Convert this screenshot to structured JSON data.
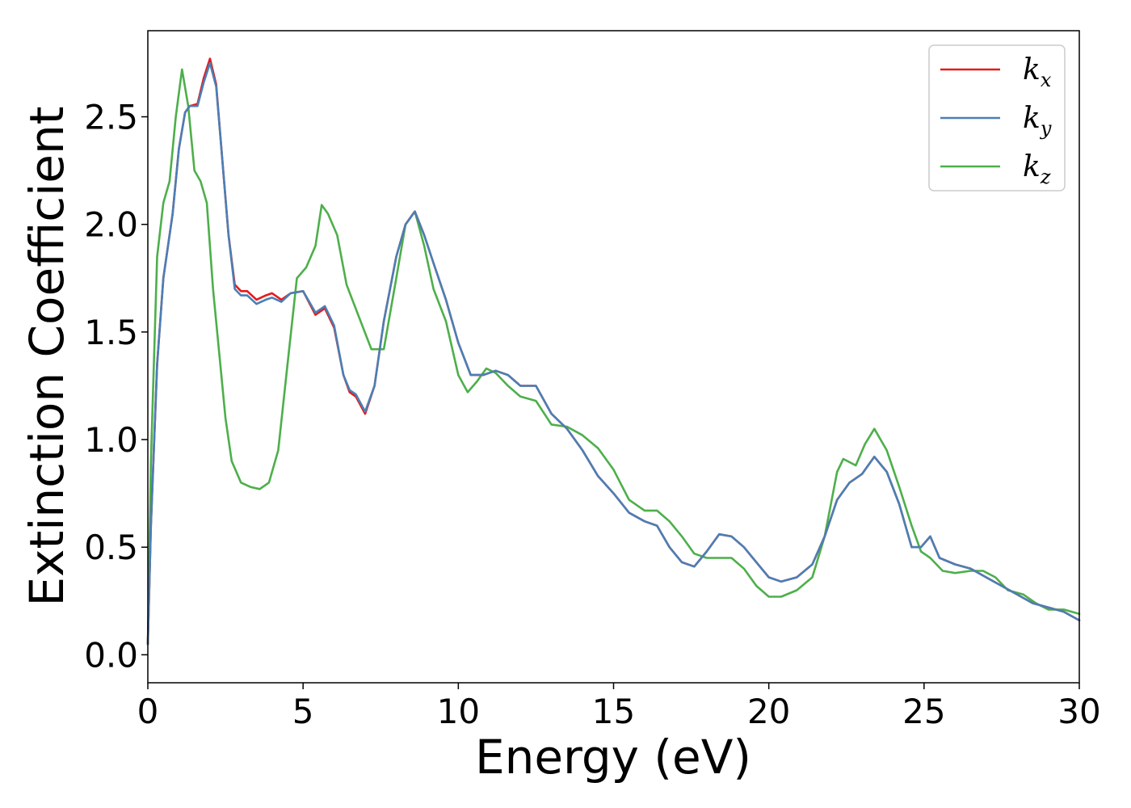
{
  "chart_data": {
    "type": "line",
    "xlabel": "Energy (eV)",
    "ylabel": "Extinction Coefficient",
    "xlim": [
      0,
      30
    ],
    "ylim": [
      -0.13,
      2.9
    ],
    "xticks": [
      "0",
      "5",
      "10",
      "15",
      "20",
      "25",
      "30"
    ],
    "yticks": [
      "0.0",
      "0.5",
      "1.0",
      "1.5",
      "2.0",
      "2.5"
    ],
    "grid": false,
    "legend_position": "top-right",
    "series": [
      {
        "name": "kx",
        "name_base": "k",
        "name_sub": "x",
        "color": "#e41a1c",
        "points": [
          [
            0,
            0.05
          ],
          [
            0.1,
            0.6
          ],
          [
            0.3,
            1.35
          ],
          [
            0.5,
            1.75
          ],
          [
            0.8,
            2.05
          ],
          [
            1.0,
            2.35
          ],
          [
            1.2,
            2.52
          ],
          [
            1.35,
            2.55
          ],
          [
            1.6,
            2.56
          ],
          [
            1.8,
            2.68
          ],
          [
            2.0,
            2.77
          ],
          [
            2.2,
            2.65
          ],
          [
            2.4,
            2.3
          ],
          [
            2.6,
            1.95
          ],
          [
            2.8,
            1.72
          ],
          [
            3.0,
            1.69
          ],
          [
            3.2,
            1.69
          ],
          [
            3.5,
            1.65
          ],
          [
            3.8,
            1.67
          ],
          [
            4.0,
            1.68
          ],
          [
            4.3,
            1.65
          ],
          [
            4.6,
            1.68
          ],
          [
            5.0,
            1.69
          ],
          [
            5.4,
            1.58
          ],
          [
            5.7,
            1.61
          ],
          [
            6.0,
            1.52
          ],
          [
            6.3,
            1.3
          ],
          [
            6.5,
            1.22
          ],
          [
            6.7,
            1.2
          ],
          [
            7.0,
            1.12
          ],
          [
            7.3,
            1.25
          ],
          [
            7.6,
            1.55
          ],
          [
            8.0,
            1.85
          ],
          [
            8.3,
            2.0
          ],
          [
            8.6,
            2.06
          ],
          [
            8.9,
            1.95
          ],
          [
            9.2,
            1.82
          ],
          [
            9.6,
            1.65
          ],
          [
            10.0,
            1.45
          ],
          [
            10.4,
            1.3
          ],
          [
            10.8,
            1.3
          ],
          [
            11.2,
            1.32
          ],
          [
            11.6,
            1.3
          ],
          [
            12.0,
            1.25
          ],
          [
            12.5,
            1.25
          ],
          [
            13.0,
            1.12
          ],
          [
            13.5,
            1.05
          ],
          [
            14.0,
            0.95
          ],
          [
            14.5,
            0.83
          ],
          [
            15.0,
            0.75
          ],
          [
            15.5,
            0.66
          ],
          [
            16.0,
            0.62
          ],
          [
            16.4,
            0.6
          ],
          [
            16.8,
            0.5
          ],
          [
            17.2,
            0.43
          ],
          [
            17.6,
            0.41
          ],
          [
            18.0,
            0.48
          ],
          [
            18.4,
            0.56
          ],
          [
            18.8,
            0.55
          ],
          [
            19.2,
            0.5
          ],
          [
            19.6,
            0.43
          ],
          [
            20.0,
            0.36
          ],
          [
            20.4,
            0.34
          ],
          [
            20.9,
            0.36
          ],
          [
            21.4,
            0.42
          ],
          [
            21.8,
            0.55
          ],
          [
            22.2,
            0.72
          ],
          [
            22.6,
            0.8
          ],
          [
            23.0,
            0.84
          ],
          [
            23.4,
            0.92
          ],
          [
            23.8,
            0.85
          ],
          [
            24.2,
            0.7
          ],
          [
            24.6,
            0.5
          ],
          [
            24.9,
            0.5
          ],
          [
            25.2,
            0.55
          ],
          [
            25.5,
            0.45
          ],
          [
            26.0,
            0.42
          ],
          [
            26.5,
            0.4
          ],
          [
            27.0,
            0.36
          ],
          [
            27.5,
            0.32
          ],
          [
            28.0,
            0.28
          ],
          [
            28.5,
            0.24
          ],
          [
            29.0,
            0.22
          ],
          [
            29.5,
            0.2
          ],
          [
            30.0,
            0.16
          ]
        ]
      },
      {
        "name": "ky",
        "name_base": "k",
        "name_sub": "y",
        "color": "#4a7fb5",
        "points": [
          [
            0,
            0.05
          ],
          [
            0.1,
            0.6
          ],
          [
            0.3,
            1.35
          ],
          [
            0.5,
            1.75
          ],
          [
            0.8,
            2.05
          ],
          [
            1.0,
            2.35
          ],
          [
            1.2,
            2.52
          ],
          [
            1.35,
            2.55
          ],
          [
            1.6,
            2.55
          ],
          [
            1.8,
            2.66
          ],
          [
            2.0,
            2.75
          ],
          [
            2.2,
            2.64
          ],
          [
            2.4,
            2.3
          ],
          [
            2.6,
            1.95
          ],
          [
            2.8,
            1.7
          ],
          [
            3.0,
            1.67
          ],
          [
            3.2,
            1.67
          ],
          [
            3.5,
            1.63
          ],
          [
            3.8,
            1.65
          ],
          [
            4.0,
            1.66
          ],
          [
            4.3,
            1.64
          ],
          [
            4.6,
            1.68
          ],
          [
            5.0,
            1.69
          ],
          [
            5.4,
            1.59
          ],
          [
            5.7,
            1.62
          ],
          [
            6.0,
            1.53
          ],
          [
            6.3,
            1.3
          ],
          [
            6.5,
            1.23
          ],
          [
            6.7,
            1.21
          ],
          [
            7.0,
            1.13
          ],
          [
            7.3,
            1.25
          ],
          [
            7.6,
            1.55
          ],
          [
            8.0,
            1.85
          ],
          [
            8.3,
            2.0
          ],
          [
            8.6,
            2.06
          ],
          [
            8.9,
            1.95
          ],
          [
            9.2,
            1.82
          ],
          [
            9.6,
            1.65
          ],
          [
            10.0,
            1.45
          ],
          [
            10.4,
            1.3
          ],
          [
            10.8,
            1.3
          ],
          [
            11.2,
            1.32
          ],
          [
            11.6,
            1.3
          ],
          [
            12.0,
            1.25
          ],
          [
            12.5,
            1.25
          ],
          [
            13.0,
            1.12
          ],
          [
            13.5,
            1.05
          ],
          [
            14.0,
            0.95
          ],
          [
            14.5,
            0.83
          ],
          [
            15.0,
            0.75
          ],
          [
            15.5,
            0.66
          ],
          [
            16.0,
            0.62
          ],
          [
            16.4,
            0.6
          ],
          [
            16.8,
            0.5
          ],
          [
            17.2,
            0.43
          ],
          [
            17.6,
            0.41
          ],
          [
            18.0,
            0.48
          ],
          [
            18.4,
            0.56
          ],
          [
            18.8,
            0.55
          ],
          [
            19.2,
            0.5
          ],
          [
            19.6,
            0.43
          ],
          [
            20.0,
            0.36
          ],
          [
            20.4,
            0.34
          ],
          [
            20.9,
            0.36
          ],
          [
            21.4,
            0.42
          ],
          [
            21.8,
            0.55
          ],
          [
            22.2,
            0.72
          ],
          [
            22.6,
            0.8
          ],
          [
            23.0,
            0.84
          ],
          [
            23.4,
            0.92
          ],
          [
            23.8,
            0.85
          ],
          [
            24.2,
            0.7
          ],
          [
            24.6,
            0.5
          ],
          [
            24.9,
            0.5
          ],
          [
            25.2,
            0.55
          ],
          [
            25.5,
            0.45
          ],
          [
            26.0,
            0.42
          ],
          [
            26.5,
            0.4
          ],
          [
            27.0,
            0.36
          ],
          [
            27.5,
            0.32
          ],
          [
            28.0,
            0.28
          ],
          [
            28.5,
            0.24
          ],
          [
            29.0,
            0.22
          ],
          [
            29.5,
            0.2
          ],
          [
            30.0,
            0.16
          ]
        ]
      },
      {
        "name": "kz",
        "name_base": "k",
        "name_sub": "z",
        "color": "#4daf4a",
        "points": [
          [
            0,
            0.05
          ],
          [
            0.1,
            0.9
          ],
          [
            0.3,
            1.85
          ],
          [
            0.5,
            2.1
          ],
          [
            0.7,
            2.2
          ],
          [
            0.9,
            2.5
          ],
          [
            1.1,
            2.72
          ],
          [
            1.3,
            2.55
          ],
          [
            1.5,
            2.25
          ],
          [
            1.7,
            2.2
          ],
          [
            1.9,
            2.1
          ],
          [
            2.1,
            1.7
          ],
          [
            2.3,
            1.4
          ],
          [
            2.5,
            1.1
          ],
          [
            2.7,
            0.9
          ],
          [
            3.0,
            0.8
          ],
          [
            3.3,
            0.78
          ],
          [
            3.6,
            0.77
          ],
          [
            3.9,
            0.8
          ],
          [
            4.2,
            0.95
          ],
          [
            4.5,
            1.35
          ],
          [
            4.8,
            1.75
          ],
          [
            5.1,
            1.8
          ],
          [
            5.4,
            1.9
          ],
          [
            5.6,
            2.09
          ],
          [
            5.8,
            2.05
          ],
          [
            6.1,
            1.95
          ],
          [
            6.4,
            1.72
          ],
          [
            6.8,
            1.57
          ],
          [
            7.2,
            1.42
          ],
          [
            7.6,
            1.42
          ],
          [
            8.0,
            1.75
          ],
          [
            8.3,
            2.0
          ],
          [
            8.6,
            2.06
          ],
          [
            8.9,
            1.9
          ],
          [
            9.2,
            1.7
          ],
          [
            9.6,
            1.55
          ],
          [
            10.0,
            1.3
          ],
          [
            10.3,
            1.22
          ],
          [
            10.6,
            1.27
          ],
          [
            10.9,
            1.33
          ],
          [
            11.2,
            1.31
          ],
          [
            11.6,
            1.25
          ],
          [
            12.0,
            1.2
          ],
          [
            12.5,
            1.18
          ],
          [
            13.0,
            1.07
          ],
          [
            13.5,
            1.06
          ],
          [
            14.0,
            1.02
          ],
          [
            14.5,
            0.96
          ],
          [
            15.0,
            0.86
          ],
          [
            15.5,
            0.72
          ],
          [
            16.0,
            0.67
          ],
          [
            16.4,
            0.67
          ],
          [
            16.8,
            0.62
          ],
          [
            17.2,
            0.55
          ],
          [
            17.6,
            0.47
          ],
          [
            18.0,
            0.45
          ],
          [
            18.4,
            0.45
          ],
          [
            18.8,
            0.45
          ],
          [
            19.2,
            0.4
          ],
          [
            19.6,
            0.32
          ],
          [
            20.0,
            0.27
          ],
          [
            20.4,
            0.27
          ],
          [
            20.9,
            0.3
          ],
          [
            21.4,
            0.36
          ],
          [
            21.8,
            0.55
          ],
          [
            22.2,
            0.85
          ],
          [
            22.4,
            0.91
          ],
          [
            22.8,
            0.88
          ],
          [
            23.1,
            0.98
          ],
          [
            23.4,
            1.05
          ],
          [
            23.8,
            0.95
          ],
          [
            24.2,
            0.78
          ],
          [
            24.6,
            0.6
          ],
          [
            24.9,
            0.48
          ],
          [
            25.2,
            0.45
          ],
          [
            25.6,
            0.39
          ],
          [
            26.0,
            0.38
          ],
          [
            26.5,
            0.39
          ],
          [
            26.9,
            0.39
          ],
          [
            27.3,
            0.36
          ],
          [
            27.7,
            0.3
          ],
          [
            28.2,
            0.28
          ],
          [
            28.6,
            0.24
          ],
          [
            29.0,
            0.21
          ],
          [
            29.5,
            0.21
          ],
          [
            30.0,
            0.19
          ]
        ]
      }
    ]
  }
}
